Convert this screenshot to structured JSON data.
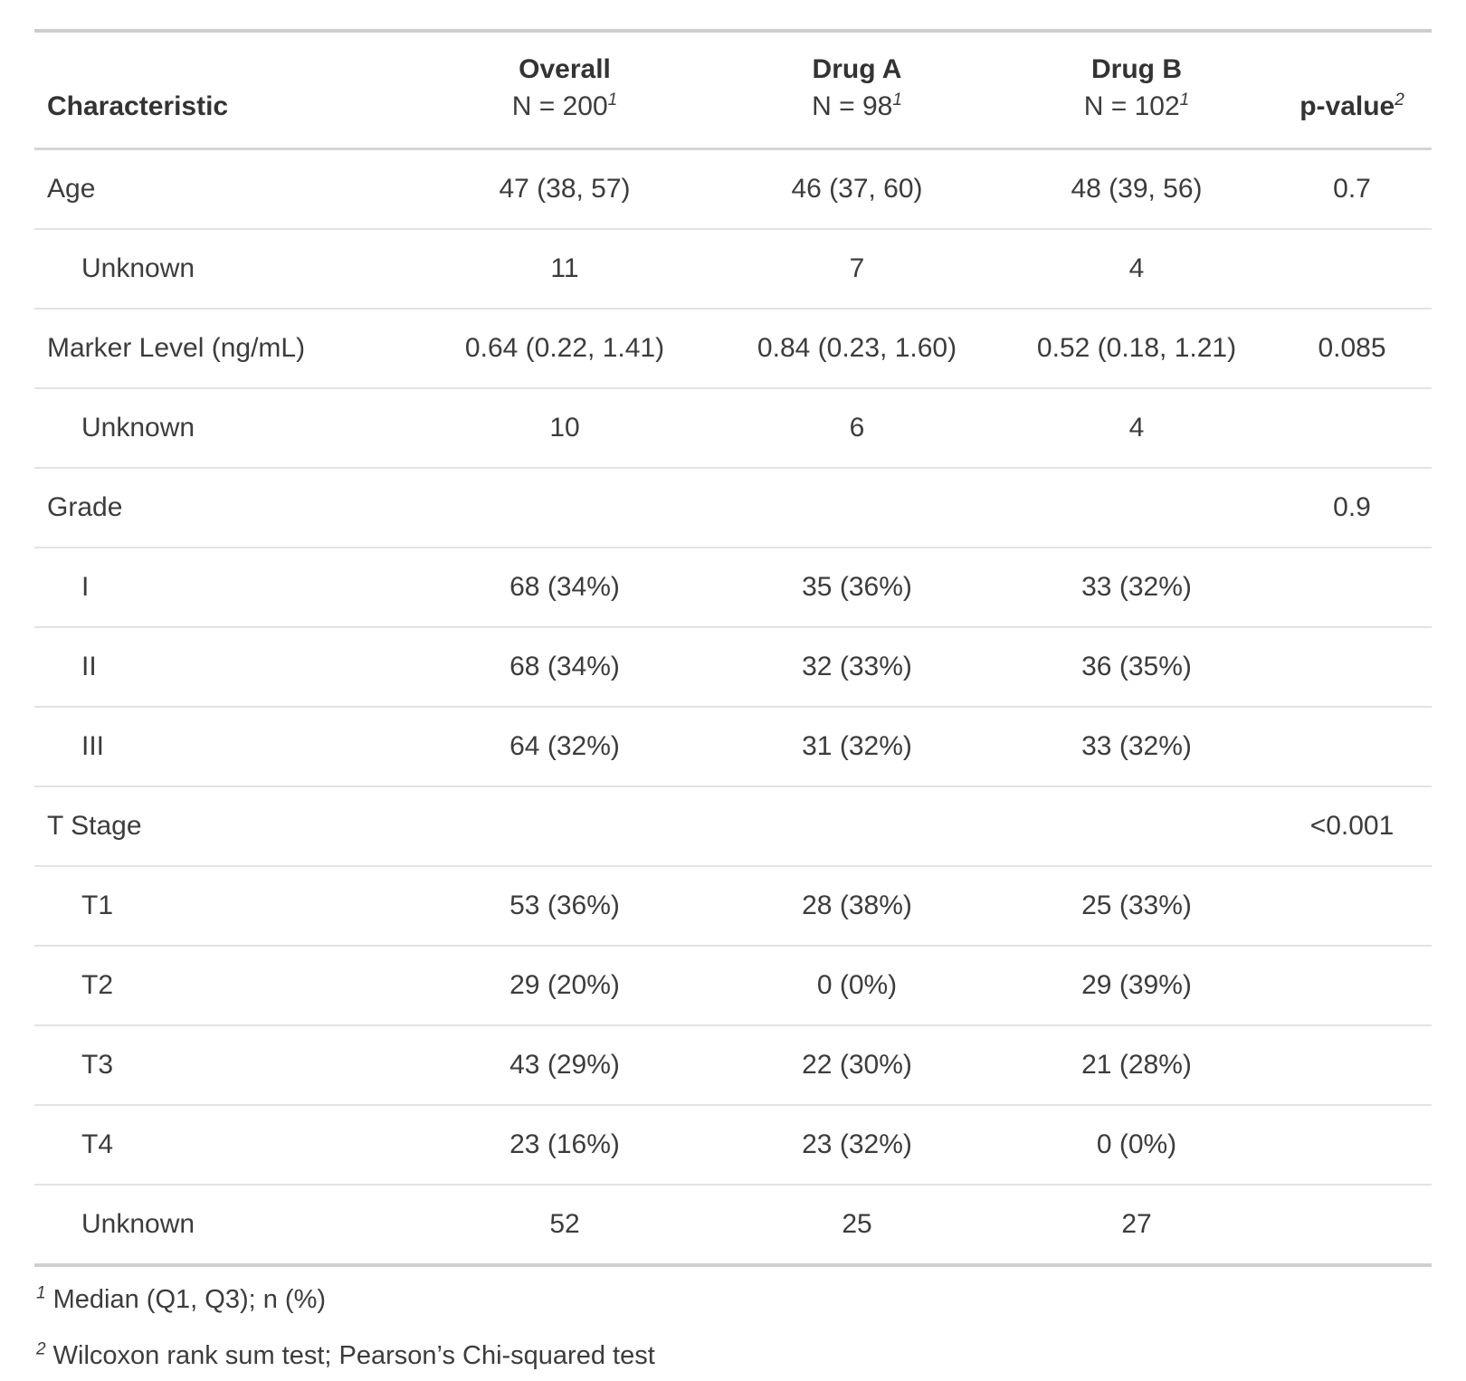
{
  "table": {
    "columns": [
      {
        "label": "Characteristic",
        "sub": "",
        "sup": ""
      },
      {
        "label": "Overall",
        "sub": "N = 200",
        "sup": "1"
      },
      {
        "label": "Drug A",
        "sub": "N = 98",
        "sup": "1"
      },
      {
        "label": "Drug B",
        "sub": "N = 102",
        "sup": "1"
      },
      {
        "label": "p-value",
        "sub": "",
        "sup": "2"
      }
    ],
    "rows": [
      {
        "label": "Age",
        "indent": false,
        "overall": "47 (38, 57)",
        "drug_a": "46 (37, 60)",
        "drug_b": "48 (39, 56)",
        "p": "0.7"
      },
      {
        "label": "Unknown",
        "indent": true,
        "overall": "11",
        "drug_a": "7",
        "drug_b": "4",
        "p": ""
      },
      {
        "label": "Marker Level (ng/mL)",
        "indent": false,
        "overall": "0.64 (0.22, 1.41)",
        "drug_a": "0.84 (0.23, 1.60)",
        "drug_b": "0.52 (0.18, 1.21)",
        "p": "0.085"
      },
      {
        "label": "Unknown",
        "indent": true,
        "overall": "10",
        "drug_a": "6",
        "drug_b": "4",
        "p": ""
      },
      {
        "label": "Grade",
        "indent": false,
        "overall": "",
        "drug_a": "",
        "drug_b": "",
        "p": "0.9"
      },
      {
        "label": "I",
        "indent": true,
        "overall": "68 (34%)",
        "drug_a": "35 (36%)",
        "drug_b": "33 (32%)",
        "p": ""
      },
      {
        "label": "II",
        "indent": true,
        "overall": "68 (34%)",
        "drug_a": "32 (33%)",
        "drug_b": "36 (35%)",
        "p": ""
      },
      {
        "label": "III",
        "indent": true,
        "overall": "64 (32%)",
        "drug_a": "31 (32%)",
        "drug_b": "33 (32%)",
        "p": ""
      },
      {
        "label": "T Stage",
        "indent": false,
        "overall": "",
        "drug_a": "",
        "drug_b": "",
        "p": "<0.001"
      },
      {
        "label": "T1",
        "indent": true,
        "overall": "53 (36%)",
        "drug_a": "28 (38%)",
        "drug_b": "25 (33%)",
        "p": ""
      },
      {
        "label": "T2",
        "indent": true,
        "overall": "29 (20%)",
        "drug_a": "0 (0%)",
        "drug_b": "29 (39%)",
        "p": ""
      },
      {
        "label": "T3",
        "indent": true,
        "overall": "43 (29%)",
        "drug_a": "22 (30%)",
        "drug_b": "21 (28%)",
        "p": ""
      },
      {
        "label": "T4",
        "indent": true,
        "overall": "23 (16%)",
        "drug_a": "23 (32%)",
        "drug_b": "0 (0%)",
        "p": ""
      },
      {
        "label": "Unknown",
        "indent": true,
        "overall": "52",
        "drug_a": "25",
        "drug_b": "27",
        "p": ""
      }
    ],
    "footnotes": [
      {
        "marker": "1",
        "text": "Median (Q1, Q3); n (%)"
      },
      {
        "marker": "2",
        "text": "Wilcoxon rank sum test; Pearson’s Chi-squared test"
      }
    ]
  },
  "colors": {
    "text": "#3c3c3c",
    "header_text": "#333333",
    "border_top": "#cdcdcd",
    "border_header": "#d5d5d5",
    "border_row": "#e3e3e3",
    "border_body_bottom": "#cfcfcf",
    "border_table_bottom": "#a8a8a8"
  }
}
